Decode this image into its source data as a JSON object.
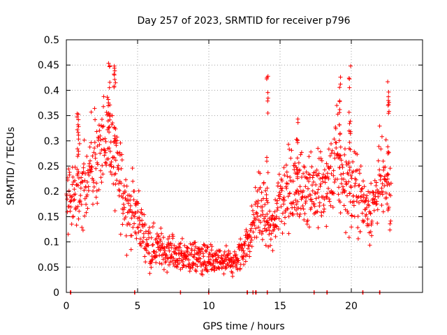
{
  "chart_data": {
    "type": "scatter",
    "title": "Day 257 of 2023, SRMTID for receiver p796",
    "xlabel": "GPS time / hours",
    "ylabel": "SRMTID / TECUs",
    "xlim": [
      0,
      25
    ],
    "ylim": [
      0,
      0.5
    ],
    "x_ticks": [
      0,
      5,
      10,
      15,
      20
    ],
    "y_ticks": [
      0,
      0.05,
      0.1,
      0.15,
      0.2,
      0.25,
      0.3,
      0.35,
      0.4,
      0.45,
      0.5
    ],
    "x_tick_labels": [
      "0",
      "5",
      "10",
      "15",
      "20"
    ],
    "y_tick_labels": [
      "0",
      "0.05",
      "0.1",
      "0.15",
      "0.2",
      "0.25",
      "0.3",
      "0.35",
      "0.4",
      "0.45",
      "0.5"
    ],
    "grid": true,
    "marker": "+",
    "color": "#ff0000",
    "trend": {
      "x": [
        0,
        0.5,
        1,
        1.5,
        2,
        2.5,
        3,
        3.5,
        4,
        4.5,
        5,
        5.5,
        6,
        6.5,
        7,
        7.5,
        8,
        8.5,
        9,
        9.5,
        10,
        10.5,
        11,
        11.5,
        12,
        12.5,
        13,
        13.5,
        14,
        14.5,
        15,
        15.5,
        16,
        16.5,
        17,
        17.5,
        18,
        18.5,
        19,
        19.5,
        20,
        20.5,
        21,
        21.5,
        22,
        22.5
      ],
      "y": [
        0.2,
        0.19,
        0.2,
        0.22,
        0.27,
        0.27,
        0.3,
        0.24,
        0.2,
        0.16,
        0.15,
        0.11,
        0.09,
        0.09,
        0.08,
        0.08,
        0.07,
        0.07,
        0.07,
        0.07,
        0.06,
        0.06,
        0.06,
        0.06,
        0.06,
        0.09,
        0.12,
        0.18,
        0.14,
        0.12,
        0.2,
        0.2,
        0.2,
        0.2,
        0.22,
        0.2,
        0.2,
        0.22,
        0.26,
        0.22,
        0.2,
        0.2,
        0.17,
        0.17,
        0.22,
        0.2
      ]
    },
    "spikes": [
      {
        "x": 3,
        "y": 0.46
      },
      {
        "x": 3.4,
        "y": 0.45
      },
      {
        "x": 14.1,
        "y": 0.43
      },
      {
        "x": 19.2,
        "y": 0.44
      },
      {
        "x": 19.9,
        "y": 0.45
      },
      {
        "x": 22.6,
        "y": 0.42
      },
      {
        "x": 0.8,
        "y": 0.37
      },
      {
        "x": 16.2,
        "y": 0.36
      }
    ],
    "zero_points_x": [
      0.3,
      4.8,
      8.0,
      10.0,
      12.7,
      13.1,
      13.3,
      14.1,
      17.4,
      18.3,
      20.8,
      22.0
    ]
  }
}
